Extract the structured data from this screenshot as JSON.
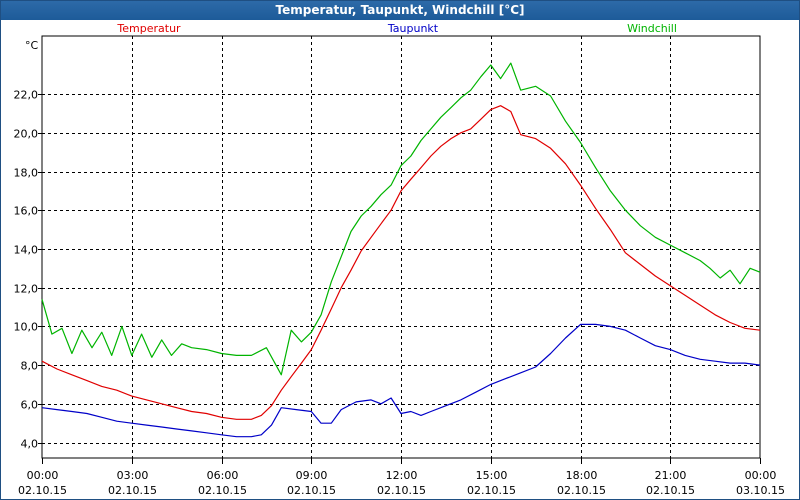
{
  "window": {
    "title": "Temperatur, Taupunkt, Windchill [°C]"
  },
  "chart_data": {
    "type": "line",
    "unit": "°C",
    "ylim": [
      3.2,
      25.0
    ],
    "y_ticks": [
      {
        "value": 4,
        "label": "4,0"
      },
      {
        "value": 6,
        "label": "6,0"
      },
      {
        "value": 8,
        "label": "8,0"
      },
      {
        "value": 10,
        "label": "10,0"
      },
      {
        "value": 12,
        "label": "12,0"
      },
      {
        "value": 14,
        "label": "14,0"
      },
      {
        "value": 16,
        "label": "16,0"
      },
      {
        "value": 18,
        "label": "18,0"
      },
      {
        "value": 20,
        "label": "20,0"
      },
      {
        "value": 22,
        "label": "22,0"
      }
    ],
    "xlim": [
      0,
      24
    ],
    "x_ticks": [
      {
        "hour": 0,
        "time": "00:00",
        "date": "02.10.15"
      },
      {
        "hour": 3,
        "time": "03:00",
        "date": "02.10.15"
      },
      {
        "hour": 6,
        "time": "06:00",
        "date": "02.10.15"
      },
      {
        "hour": 9,
        "time": "09:00",
        "date": "02.10.15"
      },
      {
        "hour": 12,
        "time": "12:00",
        "date": "02.10.15"
      },
      {
        "hour": 15,
        "time": "15:00",
        "date": "02.10.15"
      },
      {
        "hour": 18,
        "time": "18:00",
        "date": "02.10.15"
      },
      {
        "hour": 21,
        "time": "21:00",
        "date": "02.10.15"
      },
      {
        "hour": 24,
        "time": "00:00",
        "date": "03.10.15"
      }
    ],
    "grid": true,
    "legend_position": "top",
    "series": [
      {
        "name": "Temperatur",
        "color": "#e00000",
        "x": [
          0,
          0.5,
          1,
          1.5,
          2,
          2.5,
          3,
          3.5,
          4,
          4.5,
          5,
          5.5,
          6,
          6.5,
          7,
          7.33,
          7.67,
          8,
          8.33,
          8.67,
          9,
          9.33,
          9.67,
          10,
          10.33,
          10.67,
          11,
          11.33,
          11.67,
          12,
          12.33,
          12.67,
          13,
          13.33,
          13.67,
          14,
          14.33,
          14.67,
          15,
          15.33,
          15.67,
          16,
          16.5,
          17,
          17.5,
          18,
          18.5,
          19,
          19.5,
          20,
          20.5,
          21,
          21.5,
          22,
          22.5,
          23,
          23.5,
          24
        ],
        "y": [
          8.2,
          7.8,
          7.5,
          7.2,
          6.9,
          6.7,
          6.4,
          6.2,
          6.0,
          5.8,
          5.6,
          5.5,
          5.3,
          5.2,
          5.2,
          5.4,
          5.9,
          6.7,
          7.4,
          8.1,
          8.8,
          9.8,
          10.9,
          12.0,
          12.9,
          13.9,
          14.6,
          15.3,
          16.0,
          17.0,
          17.6,
          18.2,
          18.8,
          19.3,
          19.7,
          20.0,
          20.2,
          20.7,
          21.2,
          21.4,
          21.1,
          19.9,
          19.7,
          19.2,
          18.4,
          17.3,
          16.1,
          15.0,
          13.8,
          13.2,
          12.6,
          12.1,
          11.6,
          11.1,
          10.6,
          10.2,
          9.9,
          9.8
        ]
      },
      {
        "name": "Taupunkt",
        "color": "#0000c8",
        "x": [
          0,
          0.5,
          1,
          1.5,
          2,
          2.5,
          3,
          3.5,
          4,
          4.5,
          5,
          5.5,
          6,
          6.5,
          7,
          7.33,
          7.67,
          8,
          8.5,
          9,
          9.33,
          9.67,
          10,
          10.5,
          11,
          11.33,
          11.67,
          12,
          12.33,
          12.67,
          13,
          13.5,
          14,
          14.5,
          15,
          15.5,
          16,
          16.5,
          17,
          17.5,
          18,
          18.5,
          19,
          19.5,
          20,
          20.5,
          21,
          21.5,
          22,
          22.5,
          23,
          23.5,
          24
        ],
        "y": [
          5.8,
          5.7,
          5.6,
          5.5,
          5.3,
          5.1,
          5.0,
          4.9,
          4.8,
          4.7,
          4.6,
          4.5,
          4.4,
          4.3,
          4.3,
          4.4,
          4.9,
          5.8,
          5.7,
          5.6,
          5.0,
          5.0,
          5.7,
          6.1,
          6.2,
          6.0,
          6.3,
          5.5,
          5.6,
          5.4,
          5.6,
          5.9,
          6.2,
          6.6,
          7.0,
          7.3,
          7.6,
          7.9,
          8.6,
          9.4,
          10.1,
          10.1,
          10.0,
          9.8,
          9.4,
          9.0,
          8.8,
          8.5,
          8.3,
          8.2,
          8.1,
          8.1,
          8.0
        ]
      },
      {
        "name": "Windchill",
        "color": "#00b400",
        "x": [
          0,
          0.33,
          0.67,
          1,
          1.33,
          1.67,
          2,
          2.33,
          2.67,
          3,
          3.33,
          3.67,
          4,
          4.33,
          4.67,
          5,
          5.5,
          6,
          6.5,
          7,
          7.5,
          8,
          8.33,
          8.67,
          9,
          9.33,
          9.67,
          10,
          10.33,
          10.67,
          11,
          11.33,
          11.67,
          12,
          12.33,
          12.67,
          13,
          13.33,
          13.67,
          14,
          14.33,
          14.67,
          15,
          15.33,
          15.67,
          16,
          16.5,
          17,
          17.5,
          18,
          18.5,
          19,
          19.5,
          20,
          20.5,
          21,
          21.5,
          22,
          22.33,
          22.67,
          23,
          23.33,
          23.67,
          24
        ],
        "y": [
          11.4,
          9.6,
          9.9,
          8.6,
          9.8,
          8.9,
          9.7,
          8.5,
          10.0,
          8.5,
          9.6,
          8.4,
          9.3,
          8.5,
          9.1,
          8.9,
          8.8,
          8.6,
          8.5,
          8.5,
          8.9,
          7.5,
          9.8,
          9.2,
          9.7,
          10.6,
          12.3,
          13.6,
          14.9,
          15.7,
          16.2,
          16.8,
          17.3,
          18.3,
          18.8,
          19.6,
          20.2,
          20.8,
          21.3,
          21.8,
          22.2,
          22.9,
          23.5,
          22.8,
          23.6,
          22.2,
          22.4,
          21.9,
          20.6,
          19.5,
          18.2,
          17.0,
          16.0,
          15.2,
          14.6,
          14.2,
          13.8,
          13.4,
          13.0,
          12.5,
          12.9,
          12.2,
          13.0,
          12.8
        ]
      }
    ]
  }
}
